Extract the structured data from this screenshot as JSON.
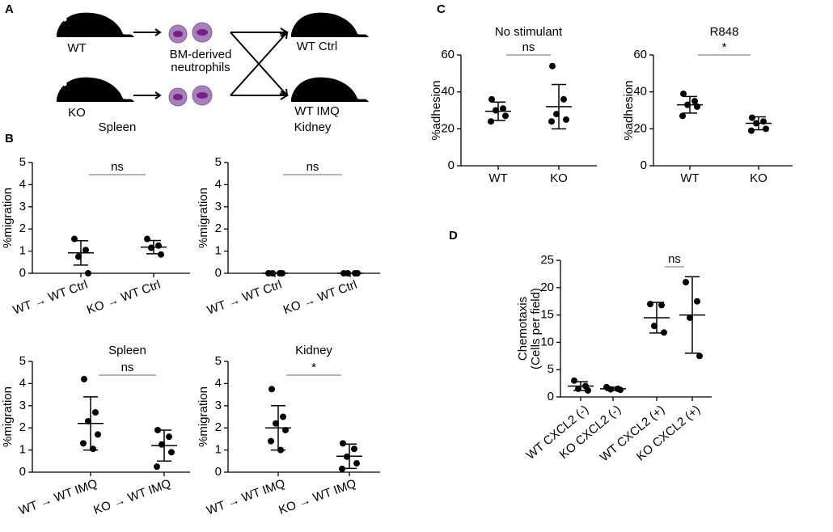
{
  "panels": [
    "A",
    "B",
    "C",
    "D"
  ],
  "diagram": {
    "donors": [
      "WT",
      "KO"
    ],
    "cells": [
      "BM-derived",
      "neutrophils"
    ],
    "recipients": [
      "WT Ctrl",
      "WT IMQ"
    ]
  },
  "chart_data": [
    {
      "type": "dot",
      "title": "Spleen",
      "ylabel": "%migration",
      "annotation": "ns",
      "color": "#000000",
      "categories": [
        "WT → WT Ctrl",
        "KO → WT Ctrl"
      ],
      "groups": [
        [
          1.55,
          1.05,
          0.75,
          0.0
        ],
        [
          1.55,
          1.25,
          1.15,
          0.85
        ]
      ],
      "mean": [
        0.92,
        1.18
      ],
      "sd": [
        0.55,
        0.3
      ],
      "ylim": [
        0,
        5
      ],
      "yticks": [
        0,
        1,
        2,
        3,
        4,
        5
      ]
    },
    {
      "type": "dot",
      "title": "Kidney",
      "ylabel": "%migration",
      "annotation": "ns",
      "color": "#000000",
      "categories": [
        "WT → WT Ctrl",
        "KO → WT Ctrl"
      ],
      "groups": [
        [
          0,
          0,
          0,
          0
        ],
        [
          0,
          0,
          0,
          0
        ]
      ],
      "mean": [
        0,
        0
      ],
      "sd": [
        0,
        0
      ],
      "ylim": [
        0,
        5
      ],
      "yticks": [
        0,
        1,
        2,
        3,
        4,
        5
      ]
    },
    {
      "type": "dot",
      "title": "Spleen",
      "ylabel": "%migration",
      "annotation": "ns",
      "color": "#000000",
      "categories": [
        "WT → WT IMQ",
        "KO → WT IMQ"
      ],
      "groups": [
        [
          4.2,
          2.7,
          2.3,
          1.7,
          1.3,
          1.05
        ],
        [
          1.9,
          1.6,
          1.25,
          0.9,
          0.25
        ]
      ],
      "mean": [
        2.2,
        1.2
      ],
      "sd": [
        1.2,
        0.7
      ],
      "ylim": [
        0,
        5
      ],
      "yticks": [
        0,
        1,
        2,
        3,
        4,
        5
      ]
    },
    {
      "type": "dot",
      "title": "Kidney",
      "ylabel": "%migration",
      "annotation": "*",
      "color": "#000000",
      "categories": [
        "WT → WT IMQ",
        "KO → WT IMQ"
      ],
      "groups": [
        [
          3.75,
          2.5,
          2.2,
          1.9,
          1.4,
          1.0
        ],
        [
          1.3,
          1.05,
          0.7,
          0.4,
          0.15
        ]
      ],
      "mean": [
        2.0,
        0.72
      ],
      "sd": [
        1.0,
        0.55
      ],
      "ylim": [
        0,
        5
      ],
      "yticks": [
        0,
        1,
        2,
        3,
        4,
        5
      ]
    },
    {
      "type": "dot",
      "title": "No stimulant",
      "ylabel": "%adhesion",
      "annotation": "ns",
      "color": "#000000",
      "categories": [
        "WT",
        "KO"
      ],
      "groups": [
        [
          36,
          31,
          30,
          27,
          24
        ],
        [
          54,
          36,
          28,
          25,
          24
        ]
      ],
      "mean": [
        29.5,
        32
      ],
      "sd": [
        5,
        12
      ],
      "ylim": [
        0,
        60
      ],
      "yticks": [
        0,
        20,
        40,
        60
      ]
    },
    {
      "type": "dot",
      "title": "R848",
      "ylabel": "%adhesion",
      "annotation": "*",
      "color": "#000000",
      "categories": [
        "WT",
        "KO"
      ],
      "groups": [
        [
          39,
          35,
          33,
          32,
          27
        ],
        [
          26,
          24,
          23,
          20,
          19
        ]
      ],
      "mean": [
        33,
        23
      ],
      "sd": [
        4.5,
        3.5
      ],
      "ylim": [
        0,
        60
      ],
      "yticks": [
        0,
        20,
        40,
        60
      ]
    },
    {
      "type": "dot",
      "ylabel": [
        "Chemotaxis",
        "(Cells per field)"
      ],
      "annotation": "ns",
      "color": "#000000",
      "categories": [
        "WT CXCL2 (-)",
        "KO CXCL2 (-)",
        "WT CXCL2 (+)",
        "KO CXCL2 (+)"
      ],
      "groups": [
        [
          3,
          2,
          1.5,
          1.2
        ],
        [
          1.8,
          1.5,
          1.4,
          1.3
        ],
        [
          17,
          16.8,
          13,
          11.8
        ],
        [
          21,
          17.5,
          14.5,
          7.5
        ]
      ],
      "mean": [
        2,
        1.5,
        14.5,
        15
      ],
      "sd": [
        0.8,
        0.3,
        2.8,
        7
      ],
      "ylim": [
        0,
        25
      ],
      "yticks": [
        0,
        5,
        10,
        15,
        20,
        25
      ]
    }
  ]
}
